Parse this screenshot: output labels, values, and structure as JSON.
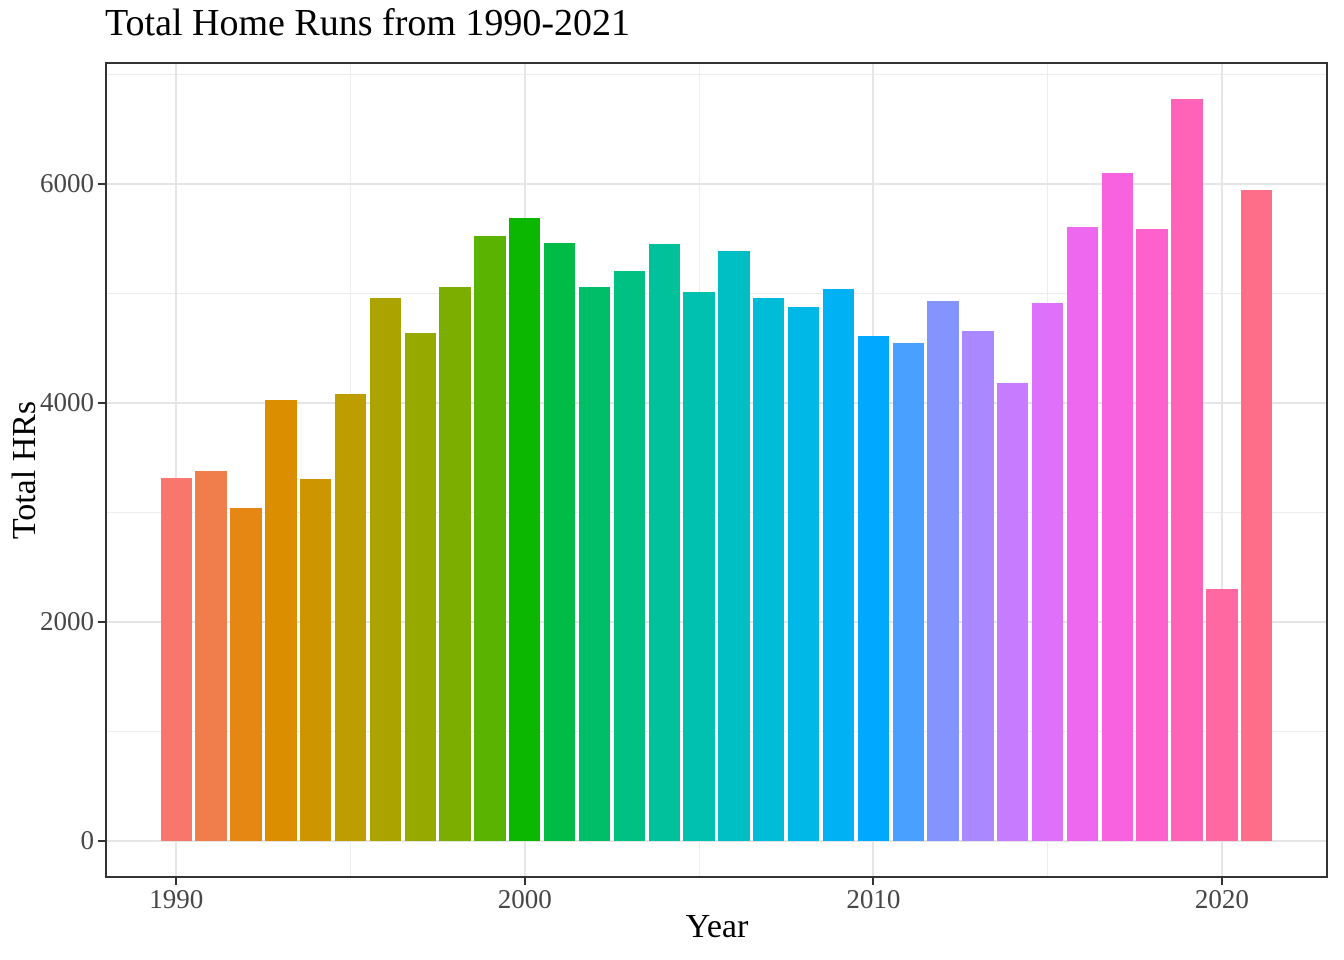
{
  "chart_data": {
    "type": "bar",
    "title": "Total Home Runs from 1990-2021",
    "xlabel": "Year",
    "ylabel": "Total HRs",
    "x": [
      1990,
      1991,
      1992,
      1993,
      1994,
      1995,
      1996,
      1997,
      1998,
      1999,
      2000,
      2001,
      2002,
      2003,
      2004,
      2005,
      2006,
      2007,
      2008,
      2009,
      2010,
      2011,
      2012,
      2013,
      2014,
      2015,
      2016,
      2017,
      2018,
      2019,
      2020,
      2021
    ],
    "values": [
      3317,
      3383,
      3038,
      4030,
      3306,
      4081,
      4962,
      4640,
      5064,
      5528,
      5693,
      5458,
      5059,
      5207,
      5451,
      5017,
      5386,
      4957,
      4878,
      5042,
      4613,
      4552,
      4934,
      4661,
      4186,
      4909,
      5610,
      6105,
      5585,
      6776,
      2304,
      5944
    ],
    "bar_colors": [
      "#F8766D",
      "#F07E4C",
      "#E68613",
      "#DA8E00",
      "#CD9600",
      "#BD9D00",
      "#ABA300",
      "#96A900",
      "#7CAE00",
      "#59B300",
      "#0CB702",
      "#00BB46",
      "#00BE67",
      "#00C082",
      "#00C19A",
      "#00C0B0",
      "#00BFC4",
      "#00BCD7",
      "#00B8E7",
      "#00B1F4",
      "#00A9FF",
      "#49A0FF",
      "#8494FF",
      "#AA88FF",
      "#C77CFF",
      "#DD71FA",
      "#ED68EE",
      "#F862DE",
      "#FF61CC",
      "#FF63B8",
      "#FF68A1",
      "#FE6E89"
    ],
    "x_ticks": [
      1990,
      2000,
      2010,
      2020
    ],
    "x_minor_ticks": [
      1995,
      2005,
      2015
    ],
    "y_ticks": [
      0,
      2000,
      4000,
      6000
    ],
    "y_minor_ticks": [
      1000,
      3000,
      5000,
      7000
    ],
    "x_range": [
      1987.955,
      2023.045
    ],
    "y_range": [
      -338.8,
      7114.8
    ],
    "bar_rel_width": 0.9,
    "grid": "on",
    "legend": "none"
  },
  "theme": {
    "background": "#FFFFFF",
    "panel_background": "#FFFFFF",
    "grid_major_color": "#E5E5E5",
    "grid_minor_color": "#EDEDED",
    "panel_border_color": "#333333",
    "tick_mark_color": "#333333",
    "axis_text_color": "#474747",
    "title_color": "#000000"
  }
}
